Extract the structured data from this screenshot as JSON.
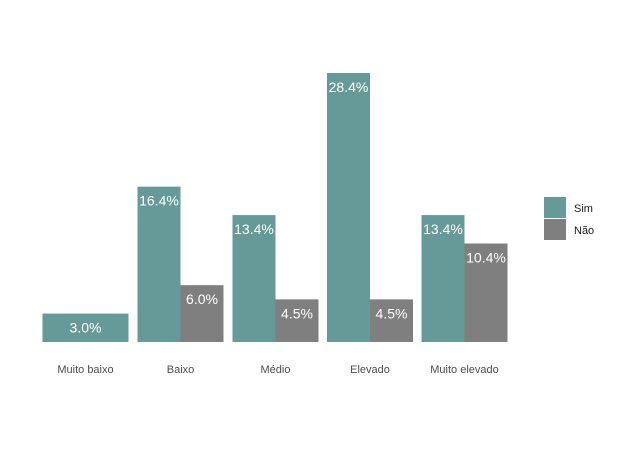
{
  "chart_data": {
    "type": "bar",
    "categories": [
      "Muito baixo",
      "Baixo",
      "Médio",
      "Elevado",
      "Muito elevado"
    ],
    "series": [
      {
        "name": "Sim",
        "color": "#659a98",
        "values": [
          3.0,
          16.4,
          13.4,
          28.4,
          13.4
        ],
        "labels": [
          "3.0%",
          "16.4%",
          "13.4%",
          "28.4%",
          "13.4%"
        ]
      },
      {
        "name": "Não",
        "color": "#7f7f7f",
        "values": [
          null,
          6.0,
          4.5,
          4.5,
          10.4
        ],
        "labels": [
          "",
          "6.0%",
          "4.5%",
          "4.5%",
          "10.4%"
        ]
      }
    ],
    "ylim": [
      0,
      28.4
    ],
    "grid": false,
    "legend_position": "right",
    "note": "Single-series category 'Muito baixo' shows only Sim, drawn at full category width."
  }
}
